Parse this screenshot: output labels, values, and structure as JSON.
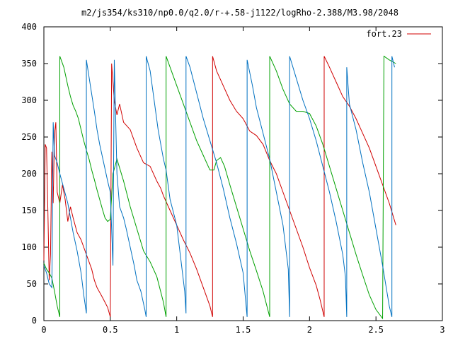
{
  "chart_data": {
    "type": "line",
    "title": "m2/js354/ks310/np0.0/q2.0/r-+.58-j1122/logRho-2.388/M3.98/2048",
    "xlabel": "",
    "ylabel": "",
    "xlim": [
      0,
      3
    ],
    "ylim": [
      0,
      400
    ],
    "x_ticks": [
      "0",
      "0.5",
      "1",
      "1.5",
      "2",
      "2.5",
      "3"
    ],
    "y_ticks": [
      "0",
      "50",
      "100",
      "150",
      "200",
      "250",
      "300",
      "350",
      "400"
    ],
    "grid": false,
    "legend_position": "top-right",
    "series": [
      {
        "name": "fort.23",
        "color": "#d00000",
        "points": [
          [
            0.0,
            82
          ],
          [
            0.01,
            240
          ],
          [
            0.02,
            235
          ],
          [
            0.03,
            150
          ],
          [
            0.04,
            55
          ],
          [
            0.05,
            90
          ],
          [
            0.06,
            230
          ],
          [
            0.07,
            160
          ],
          [
            0.08,
            255
          ],
          [
            0.09,
            270
          ],
          [
            0.1,
            175
          ],
          [
            0.12,
            160
          ],
          [
            0.14,
            185
          ],
          [
            0.16,
            165
          ],
          [
            0.18,
            135
          ],
          [
            0.2,
            155
          ],
          [
            0.22,
            140
          ],
          [
            0.25,
            120
          ],
          [
            0.28,
            110
          ],
          [
            0.3,
            100
          ],
          [
            0.32,
            90
          ],
          [
            0.34,
            80
          ],
          [
            0.36,
            70
          ],
          [
            0.38,
            55
          ],
          [
            0.4,
            45
          ],
          [
            0.44,
            32
          ],
          [
            0.48,
            18
          ],
          [
            0.5,
            5
          ],
          [
            0.51,
            350
          ],
          [
            0.53,
            300
          ],
          [
            0.55,
            280
          ],
          [
            0.57,
            295
          ],
          [
            0.6,
            270
          ],
          [
            0.65,
            260
          ],
          [
            0.7,
            235
          ],
          [
            0.75,
            215
          ],
          [
            0.8,
            210
          ],
          [
            0.85,
            190
          ],
          [
            0.88,
            180
          ],
          [
            0.9,
            170
          ],
          [
            0.95,
            150
          ],
          [
            1.0,
            130
          ],
          [
            1.05,
            110
          ],
          [
            1.1,
            92
          ],
          [
            1.15,
            70
          ],
          [
            1.2,
            45
          ],
          [
            1.25,
            20
          ],
          [
            1.27,
            5
          ],
          [
            1.27,
            360
          ],
          [
            1.3,
            340
          ],
          [
            1.35,
            320
          ],
          [
            1.4,
            300
          ],
          [
            1.45,
            285
          ],
          [
            1.5,
            275
          ],
          [
            1.55,
            258
          ],
          [
            1.6,
            252
          ],
          [
            1.65,
            240
          ],
          [
            1.7,
            218
          ],
          [
            1.75,
            200
          ],
          [
            1.8,
            175
          ],
          [
            1.85,
            150
          ],
          [
            1.9,
            125
          ],
          [
            1.95,
            100
          ],
          [
            2.0,
            72
          ],
          [
            2.05,
            48
          ],
          [
            2.08,
            28
          ],
          [
            2.11,
            5
          ],
          [
            2.11,
            360
          ],
          [
            2.15,
            345
          ],
          [
            2.2,
            325
          ],
          [
            2.25,
            305
          ],
          [
            2.3,
            292
          ],
          [
            2.35,
            275
          ],
          [
            2.4,
            255
          ],
          [
            2.45,
            235
          ],
          [
            2.5,
            210
          ],
          [
            2.55,
            185
          ],
          [
            2.6,
            160
          ],
          [
            2.65,
            130
          ]
        ]
      },
      {
        "name": "",
        "color": "#00a000",
        "points": [
          [
            0.0,
            78
          ],
          [
            0.02,
            70
          ],
          [
            0.04,
            65
          ],
          [
            0.06,
            58
          ],
          [
            0.08,
            40
          ],
          [
            0.1,
            20
          ],
          [
            0.12,
            5
          ],
          [
            0.12,
            360
          ],
          [
            0.15,
            345
          ],
          [
            0.18,
            320
          ],
          [
            0.2,
            305
          ],
          [
            0.22,
            293
          ],
          [
            0.24,
            285
          ],
          [
            0.26,
            275
          ],
          [
            0.28,
            260
          ],
          [
            0.3,
            245
          ],
          [
            0.32,
            232
          ],
          [
            0.34,
            220
          ],
          [
            0.36,
            205
          ],
          [
            0.38,
            192
          ],
          [
            0.4,
            178
          ],
          [
            0.42,
            165
          ],
          [
            0.44,
            152
          ],
          [
            0.46,
            140
          ],
          [
            0.48,
            135
          ],
          [
            0.5,
            138
          ],
          [
            0.52,
            200
          ],
          [
            0.55,
            220
          ],
          [
            0.6,
            190
          ],
          [
            0.65,
            155
          ],
          [
            0.7,
            125
          ],
          [
            0.75,
            95
          ],
          [
            0.8,
            80
          ],
          [
            0.85,
            60
          ],
          [
            0.9,
            25
          ],
          [
            0.92,
            5
          ],
          [
            0.92,
            360
          ],
          [
            0.95,
            345
          ],
          [
            1.0,
            320
          ],
          [
            1.05,
            295
          ],
          [
            1.1,
            270
          ],
          [
            1.15,
            245
          ],
          [
            1.2,
            225
          ],
          [
            1.25,
            205
          ],
          [
            1.28,
            205
          ],
          [
            1.3,
            218
          ],
          [
            1.33,
            222
          ],
          [
            1.36,
            210
          ],
          [
            1.4,
            185
          ],
          [
            1.45,
            155
          ],
          [
            1.5,
            125
          ],
          [
            1.55,
            95
          ],
          [
            1.6,
            68
          ],
          [
            1.65,
            40
          ],
          [
            1.7,
            5
          ],
          [
            1.7,
            360
          ],
          [
            1.75,
            340
          ],
          [
            1.8,
            315
          ],
          [
            1.85,
            295
          ],
          [
            1.9,
            285
          ],
          [
            1.95,
            285
          ],
          [
            2.0,
            282
          ],
          [
            2.05,
            265
          ],
          [
            2.1,
            240
          ],
          [
            2.15,
            210
          ],
          [
            2.2,
            180
          ],
          [
            2.25,
            150
          ],
          [
            2.3,
            120
          ],
          [
            2.35,
            90
          ],
          [
            2.4,
            62
          ],
          [
            2.45,
            35
          ],
          [
            2.5,
            15
          ],
          [
            2.55,
            3
          ],
          [
            2.56,
            360
          ],
          [
            2.6,
            355
          ],
          [
            2.65,
            350
          ]
        ]
      },
      {
        "name": "",
        "color": "#0070c0",
        "points": [
          [
            0.0,
            75
          ],
          [
            0.02,
            65
          ],
          [
            0.04,
            50
          ],
          [
            0.06,
            45
          ],
          [
            0.07,
            270
          ],
          [
            0.08,
            225
          ],
          [
            0.1,
            215
          ],
          [
            0.12,
            200
          ],
          [
            0.15,
            180
          ],
          [
            0.18,
            160
          ],
          [
            0.2,
            140
          ],
          [
            0.22,
            120
          ],
          [
            0.25,
            95
          ],
          [
            0.28,
            65
          ],
          [
            0.3,
            35
          ],
          [
            0.32,
            10
          ],
          [
            0.32,
            355
          ],
          [
            0.35,
            320
          ],
          [
            0.38,
            285
          ],
          [
            0.4,
            260
          ],
          [
            0.42,
            240
          ],
          [
            0.45,
            215
          ],
          [
            0.48,
            190
          ],
          [
            0.5,
            175
          ],
          [
            0.52,
            75
          ],
          [
            0.53,
            355
          ],
          [
            0.55,
            200
          ],
          [
            0.57,
            155
          ],
          [
            0.6,
            140
          ],
          [
            0.62,
            125
          ],
          [
            0.65,
            100
          ],
          [
            0.68,
            75
          ],
          [
            0.7,
            55
          ],
          [
            0.73,
            40
          ],
          [
            0.76,
            15
          ],
          [
            0.77,
            5
          ],
          [
            0.77,
            360
          ],
          [
            0.8,
            340
          ],
          [
            0.83,
            300
          ],
          [
            0.86,
            260
          ],
          [
            0.9,
            220
          ],
          [
            0.92,
            205
          ],
          [
            0.95,
            165
          ],
          [
            1.0,
            130
          ],
          [
            1.03,
            85
          ],
          [
            1.06,
            40
          ],
          [
            1.07,
            10
          ],
          [
            1.07,
            360
          ],
          [
            1.1,
            345
          ],
          [
            1.15,
            310
          ],
          [
            1.2,
            275
          ],
          [
            1.25,
            245
          ],
          [
            1.3,
            215
          ],
          [
            1.35,
            180
          ],
          [
            1.4,
            140
          ],
          [
            1.45,
            105
          ],
          [
            1.5,
            65
          ],
          [
            1.52,
            25
          ],
          [
            1.53,
            5
          ],
          [
            1.53,
            355
          ],
          [
            1.57,
            320
          ],
          [
            1.6,
            290
          ],
          [
            1.65,
            255
          ],
          [
            1.7,
            220
          ],
          [
            1.75,
            175
          ],
          [
            1.8,
            130
          ],
          [
            1.84,
            70
          ],
          [
            1.85,
            5
          ],
          [
            1.85,
            360
          ],
          [
            1.9,
            330
          ],
          [
            1.95,
            300
          ],
          [
            2.0,
            275
          ],
          [
            2.05,
            245
          ],
          [
            2.1,
            210
          ],
          [
            2.15,
            175
          ],
          [
            2.2,
            135
          ],
          [
            2.25,
            90
          ],
          [
            2.27,
            60
          ],
          [
            2.28,
            5
          ],
          [
            2.28,
            345
          ],
          [
            2.3,
            295
          ],
          [
            2.35,
            260
          ],
          [
            2.4,
            215
          ],
          [
            2.45,
            175
          ],
          [
            2.5,
            125
          ],
          [
            2.55,
            75
          ],
          [
            2.6,
            20
          ],
          [
            2.62,
            5
          ],
          [
            2.62,
            360
          ],
          [
            2.64,
            345
          ]
        ]
      }
    ],
    "legend": {
      "label": "fort.23"
    }
  }
}
